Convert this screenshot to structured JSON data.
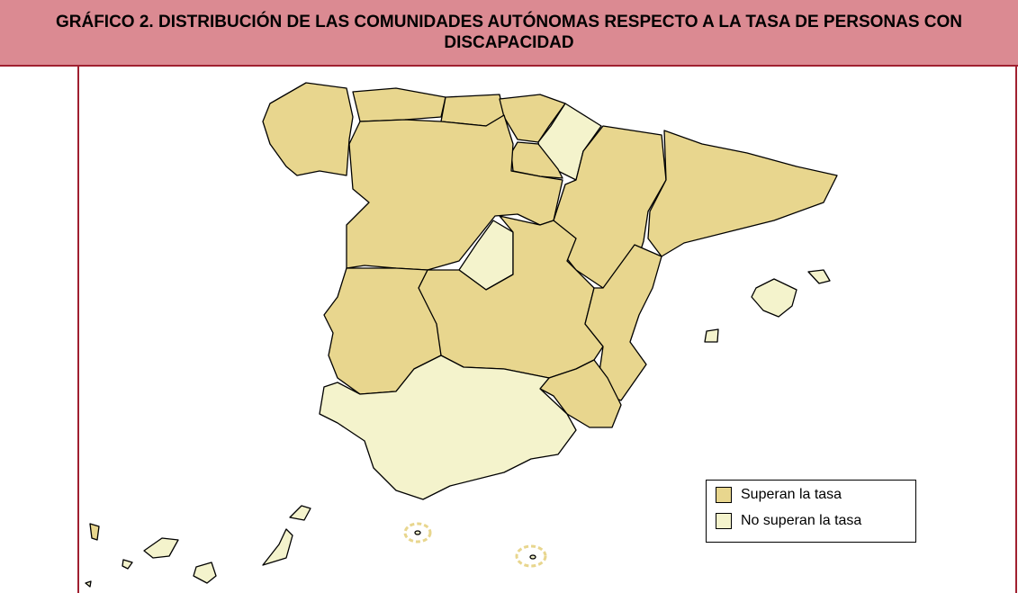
{
  "title": "GRÁFICO 2. DISTRIBUCIÓN DE LAS COMUNIDADES AUTÓNOMAS RESPECTO A LA TASA DE PERSONAS CON DISCAPACIDAD",
  "legend": [
    {
      "name": "Superan la tasa",
      "color": "#e8d68e"
    },
    {
      "name": "No superan la tasa",
      "color": "#f4f3cc"
    }
  ]
}
